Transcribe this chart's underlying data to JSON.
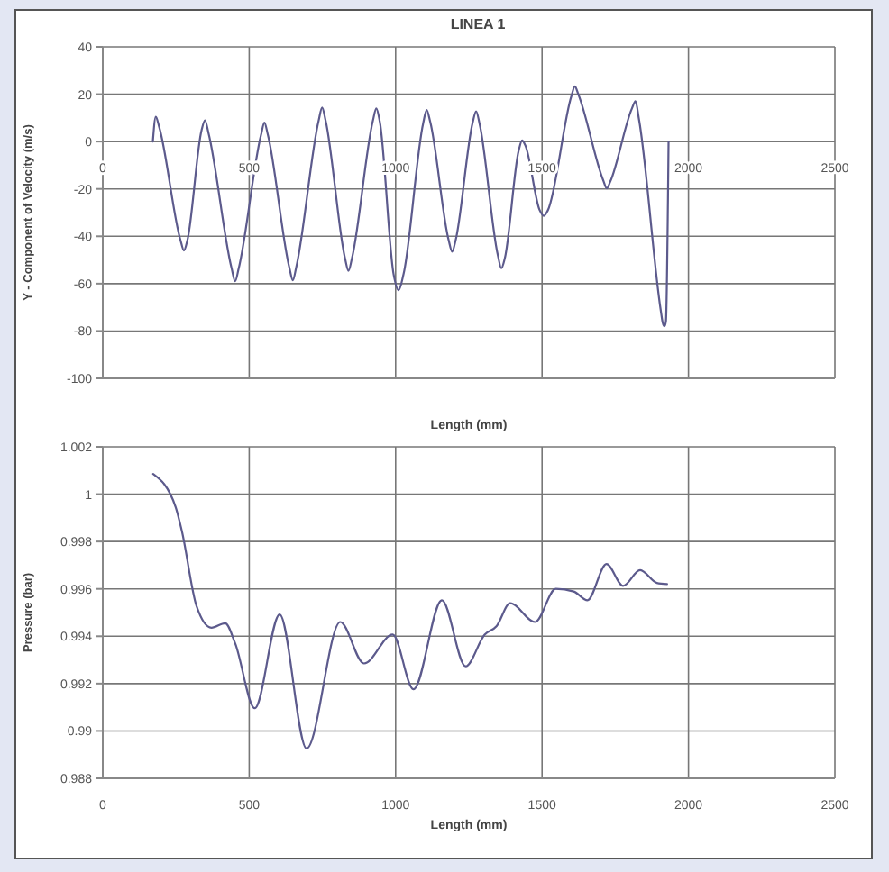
{
  "chart_data": [
    {
      "type": "line",
      "title": "LINEA 1",
      "xlabel": "Length (mm)",
      "ylabel": "Y - Component of Velocity (m/s)",
      "xlim": [
        0,
        2500
      ],
      "xticks": [
        0,
        500,
        1000,
        1500,
        2000,
        2500
      ],
      "ylim": [
        -100,
        40
      ],
      "yticks": [
        -100,
        -80,
        -60,
        -40,
        -20,
        0,
        20,
        40
      ],
      "grid": true,
      "marker": "none",
      "series": [
        {
          "color": "#5c5a8c",
          "x": [
            171,
            181,
            193,
            265,
            277,
            289,
            337,
            349,
            361,
            440,
            452,
            464,
            540,
            552,
            564,
            637,
            649,
            661,
            737,
            749,
            761,
            827,
            839,
            851,
            922,
            934,
            946,
            993,
            1010,
            1027,
            1094,
            1106,
            1118,
            1181,
            1193,
            1205,
            1263,
            1275,
            1287,
            1349,
            1361,
            1373,
            1420,
            1432,
            1444,
            1492,
            1506,
            1520,
            1600,
            1612,
            1624,
            1709,
            1721,
            1733,
            1807,
            1819,
            1831,
            1905,
            1912,
            1918,
            1923,
            1932
          ],
          "values": [
            0,
            10.5,
            6,
            -41.5,
            -46,
            -41.6,
            4.6,
            9,
            3.6,
            -53.6,
            -59,
            -53.6,
            2.6,
            8,
            2.7,
            -53.2,
            -58.6,
            -52.8,
            8.8,
            14.4,
            8.8,
            -49.2,
            -54.6,
            -49.2,
            8.6,
            14,
            8.4,
            -56,
            -62.8,
            -56,
            7.7,
            13.3,
            8.4,
            -41.6,
            -46.5,
            -41.6,
            8,
            12.8,
            7.3,
            -48,
            -53.5,
            -49.2,
            -3.9,
            0.5,
            -2,
            -29,
            -31.4,
            -29,
            19.1,
            23.3,
            19.9,
            -16.4,
            -19.8,
            -16.9,
            14,
            17,
            9.4,
            -71,
            -76.5,
            -78,
            -76,
            0
          ]
        }
      ]
    },
    {
      "type": "line",
      "xlabel": "Length (mm)",
      "ylabel": "Pressure (bar)",
      "xlim": [
        0,
        2500
      ],
      "xticks": [
        0,
        500,
        1000,
        1500,
        2000,
        2500
      ],
      "ylim": [
        0.988,
        1.002
      ],
      "yticks": [
        0.988,
        0.99,
        0.992,
        0.994,
        0.996,
        0.998,
        1,
        1.002
      ],
      "grid": true,
      "marker": "none",
      "series": [
        {
          "color": "#5c5a8c",
          "x": [
            172,
            249,
            270,
            320,
            371,
            418,
            452,
            519,
            604,
            696,
            811,
            892,
            990,
            1061,
            1158,
            1239,
            1304,
            1345,
            1391,
            1476,
            1547,
            1608,
            1655,
            1720,
            1777,
            1835,
            1892,
            1927
          ],
          "values": [
            1.00085,
            0.99945,
            0.99844,
            0.99528,
            0.99436,
            0.99455,
            0.9937,
            0.99096,
            0.99492,
            0.98926,
            0.9946,
            0.99285,
            0.99407,
            0.99176,
            0.99552,
            0.99273,
            0.99407,
            0.99443,
            0.9954,
            0.9946,
            0.996,
            0.99589,
            0.99552,
            0.99705,
            0.99613,
            0.99679,
            0.99625,
            0.9962
          ]
        }
      ]
    }
  ]
}
